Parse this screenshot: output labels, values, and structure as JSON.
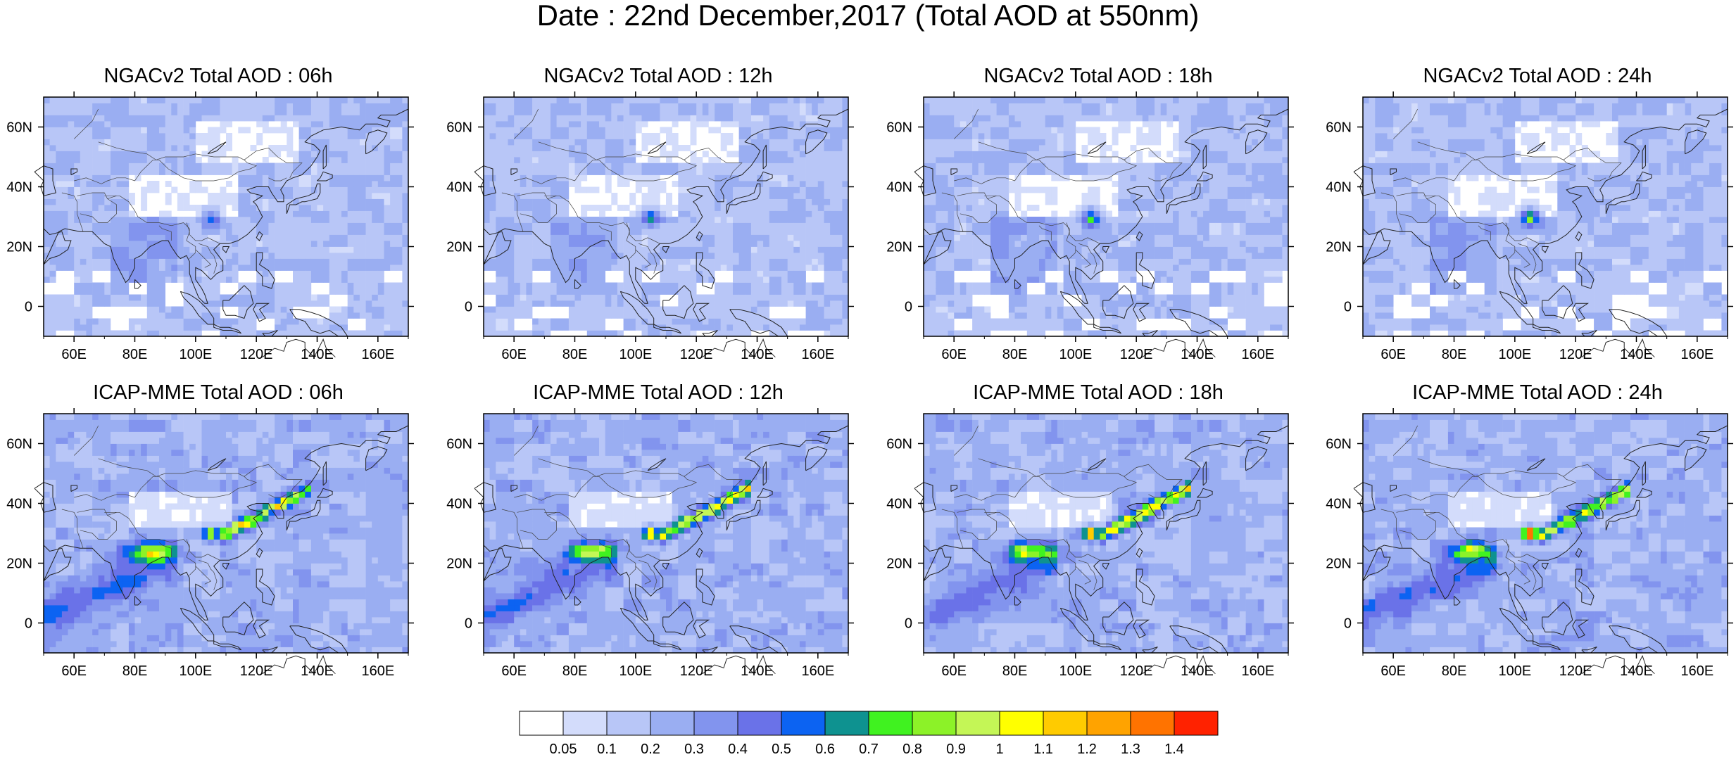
{
  "figure": {
    "title": "Date : 22nd December,2017 (Total AOD at 550nm)"
  },
  "panels": [
    {
      "title": "NGACv2 Total AOD : 06h",
      "model": "NGACv2",
      "hour": "06h"
    },
    {
      "title": "NGACv2 Total AOD : 12h",
      "model": "NGACv2",
      "hour": "12h"
    },
    {
      "title": "NGACv2 Total AOD : 18h",
      "model": "NGACv2",
      "hour": "18h"
    },
    {
      "title": "NGACv2 Total AOD : 24h",
      "model": "NGACv2",
      "hour": "24h"
    },
    {
      "title": "ICAP-MME Total AOD : 06h",
      "model": "ICAP-MME",
      "hour": "06h"
    },
    {
      "title": "ICAP-MME Total AOD : 12h",
      "model": "ICAP-MME",
      "hour": "12h"
    },
    {
      "title": "ICAP-MME Total AOD : 18h",
      "model": "ICAP-MME",
      "hour": "18h"
    },
    {
      "title": "ICAP-MME Total AOD : 24h",
      "model": "ICAP-MME",
      "hour": "24h"
    }
  ],
  "map": {
    "lon_range": [
      50,
      170
    ],
    "lat_range": [
      -10,
      70
    ],
    "lon_ticks": [
      {
        "v": 60,
        "label": "60E"
      },
      {
        "v": 80,
        "label": "80E"
      },
      {
        "v": 100,
        "label": "100E"
      },
      {
        "v": 120,
        "label": "120E"
      },
      {
        "v": 140,
        "label": "140E"
      },
      {
        "v": 160,
        "label": "160E"
      }
    ],
    "lat_ticks": [
      {
        "v": 60,
        "label": "60N"
      },
      {
        "v": 40,
        "label": "40N"
      },
      {
        "v": 20,
        "label": "20N"
      },
      {
        "v": 0,
        "label": "0"
      }
    ]
  },
  "colorbar": {
    "levels": [
      "0.05",
      "0.1",
      "0.2",
      "0.3",
      "0.4",
      "0.5",
      "0.6",
      "0.7",
      "0.8",
      "0.9",
      "1",
      "1.1",
      "1.2",
      "1.3",
      "1.4"
    ],
    "colors": [
      "#ffffff",
      "#d3dcfb",
      "#b8c6f7",
      "#9aaef2",
      "#8294ee",
      "#6a72e8",
      "#0c63f2",
      "#0e9290",
      "#40f220",
      "#8cf228",
      "#c4f656",
      "#ffff00",
      "#ffcb00",
      "#ffa300",
      "#ff7300",
      "#ff2200"
    ]
  }
}
